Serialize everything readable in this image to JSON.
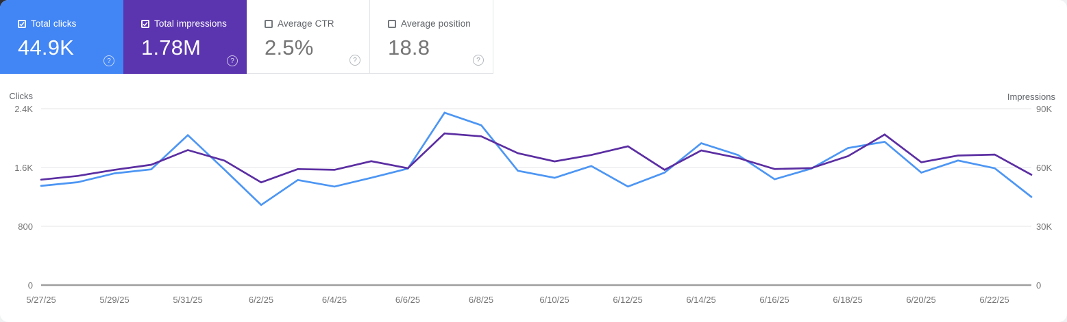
{
  "cards": [
    {
      "id": "total-clicks",
      "label": "Total clicks",
      "value": "44.9K",
      "selected": true,
      "color": "#4285f4"
    },
    {
      "id": "total-impressions",
      "label": "Total impressions",
      "value": "1.78M",
      "selected": true,
      "color": "#5b35af"
    },
    {
      "id": "average-ctr",
      "label": "Average CTR",
      "value": "2.5%",
      "selected": false,
      "color": null
    },
    {
      "id": "average-position",
      "label": "Average position",
      "value": "18.8",
      "selected": false,
      "color": null
    }
  ],
  "chart_data": {
    "type": "line",
    "dates": [
      "5/27/25",
      "5/28/25",
      "5/29/25",
      "5/30/25",
      "5/31/25",
      "6/1/25",
      "6/2/25",
      "6/3/25",
      "6/4/25",
      "6/5/25",
      "6/6/25",
      "6/7/25",
      "6/8/25",
      "6/9/25",
      "6/10/25",
      "6/11/25",
      "6/12/25",
      "6/13/25",
      "6/14/25",
      "6/15/25",
      "6/16/25",
      "6/17/25",
      "6/18/25",
      "6/19/25",
      "6/20/25",
      "6/21/25",
      "6/22/25",
      "6/23/25"
    ],
    "x_tick_step": 2,
    "series": [
      {
        "name": "Clicks",
        "color": "#4d96f3",
        "axis": "left",
        "values": [
          1350,
          1400,
          1520,
          1575,
          2040,
          1570,
          1090,
          1430,
          1340,
          1460,
          1585,
          2345,
          2175,
          1555,
          1460,
          1620,
          1340,
          1530,
          1930,
          1770,
          1440,
          1585,
          1865,
          1950,
          1530,
          1695,
          1590,
          1200
        ]
      },
      {
        "name": "Impressions",
        "color": "#5b2ea2",
        "axis": "right",
        "values": [
          53800,
          55700,
          58800,
          61400,
          68900,
          63500,
          52400,
          59200,
          58800,
          63200,
          59600,
          77400,
          75900,
          67300,
          63100,
          66400,
          70800,
          58800,
          68700,
          64900,
          59200,
          59700,
          65800,
          76800,
          62700,
          66100,
          66600,
          56300
        ]
      }
    ],
    "left_axis": {
      "title": "Clicks",
      "max": 2400,
      "ticks": [
        {
          "label": "2.4K",
          "value": 2400
        },
        {
          "label": "1.6K",
          "value": 1600
        },
        {
          "label": "800",
          "value": 800
        },
        {
          "label": "0",
          "value": 0
        }
      ]
    },
    "right_axis": {
      "title": "Impressions",
      "max": 90000,
      "ticks": [
        {
          "label": "90K",
          "value": 90000
        },
        {
          "label": "60K",
          "value": 60000
        },
        {
          "label": "30K",
          "value": 30000
        },
        {
          "label": "0",
          "value": 0
        }
      ]
    },
    "grid": "horizontal",
    "legend": "none"
  }
}
